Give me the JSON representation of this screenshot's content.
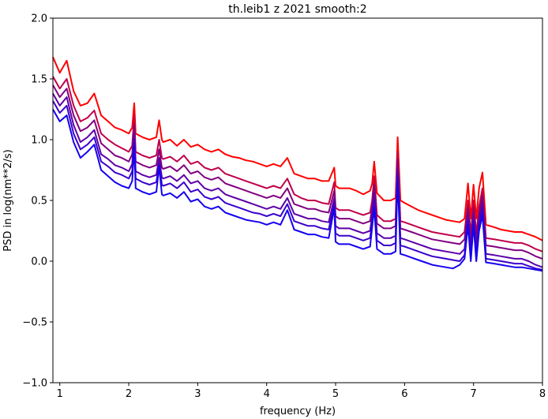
{
  "chart_data": {
    "type": "line",
    "title": "th.leib1 z 2021 smooth:2",
    "xlabel": "frequency (Hz)",
    "ylabel": "PSD in log(nm**2/s)",
    "xlim": [
      0.9,
      8.0
    ],
    "ylim": [
      -1.0,
      2.0
    ],
    "xticks": [
      1,
      2,
      3,
      4,
      5,
      6,
      7,
      8
    ],
    "xtick_labels": [
      "1",
      "2",
      "3",
      "4",
      "5",
      "6",
      "7",
      "8"
    ],
    "yticks": [
      -1.0,
      -0.5,
      0.0,
      0.5,
      1.0,
      1.5,
      2.0
    ],
    "ytick_labels": [
      "−1.0",
      "−0.5",
      "0.0",
      "0.5",
      "1.0",
      "1.5",
      "2.0"
    ],
    "grid": false,
    "legend": "none",
    "series": [
      {
        "color": "#ff0000",
        "x": [
          0.9,
          1.0,
          1.1,
          1.2,
          1.3,
          1.4,
          1.5,
          1.6,
          1.7,
          1.8,
          1.9,
          2.0,
          2.05,
          2.08,
          2.1,
          2.2,
          2.3,
          2.4,
          2.44,
          2.48,
          2.5,
          2.6,
          2.7,
          2.8,
          2.9,
          3.0,
          3.1,
          3.2,
          3.3,
          3.4,
          3.5,
          3.6,
          3.7,
          3.8,
          3.9,
          4.0,
          4.1,
          4.2,
          4.3,
          4.4,
          4.5,
          4.6,
          4.7,
          4.8,
          4.9,
          4.98,
          5.0,
          5.05,
          5.1,
          5.2,
          5.3,
          5.4,
          5.5,
          5.53,
          5.56,
          5.6,
          5.7,
          5.8,
          5.87,
          5.9,
          5.94,
          6.0,
          6.1,
          6.2,
          6.3,
          6.4,
          6.5,
          6.6,
          6.7,
          6.8,
          6.87,
          6.92,
          6.96,
          7.0,
          7.04,
          7.08,
          7.13,
          7.18,
          7.3,
          7.4,
          7.5,
          7.6,
          7.7,
          7.8,
          7.9,
          8.0
        ],
        "y": [
          1.68,
          1.55,
          1.65,
          1.4,
          1.28,
          1.3,
          1.38,
          1.2,
          1.15,
          1.1,
          1.08,
          1.05,
          1.1,
          1.3,
          1.05,
          1.02,
          1.0,
          1.02,
          1.16,
          1.0,
          0.98,
          1.0,
          0.95,
          1.0,
          0.94,
          0.96,
          0.92,
          0.9,
          0.92,
          0.88,
          0.86,
          0.85,
          0.83,
          0.82,
          0.8,
          0.78,
          0.8,
          0.78,
          0.85,
          0.72,
          0.7,
          0.68,
          0.68,
          0.66,
          0.66,
          0.77,
          0.62,
          0.6,
          0.6,
          0.6,
          0.58,
          0.55,
          0.58,
          0.64,
          0.82,
          0.56,
          0.5,
          0.5,
          0.52,
          1.02,
          0.5,
          0.48,
          0.45,
          0.42,
          0.4,
          0.38,
          0.36,
          0.34,
          0.33,
          0.32,
          0.35,
          0.64,
          0.35,
          0.63,
          0.35,
          0.6,
          0.73,
          0.3,
          0.28,
          0.26,
          0.25,
          0.24,
          0.24,
          0.22,
          0.2,
          0.17
        ]
      },
      {
        "color": "#c0004a",
        "x": [
          0.9,
          1.0,
          1.1,
          1.2,
          1.3,
          1.4,
          1.5,
          1.6,
          1.7,
          1.8,
          1.9,
          2.0,
          2.05,
          2.08,
          2.1,
          2.2,
          2.3,
          2.4,
          2.44,
          2.48,
          2.5,
          2.6,
          2.7,
          2.8,
          2.9,
          3.0,
          3.1,
          3.2,
          3.3,
          3.4,
          3.5,
          3.6,
          3.7,
          3.8,
          3.9,
          4.0,
          4.1,
          4.2,
          4.3,
          4.4,
          4.5,
          4.6,
          4.7,
          4.8,
          4.9,
          4.98,
          5.0,
          5.05,
          5.1,
          5.2,
          5.3,
          5.4,
          5.5,
          5.53,
          5.56,
          5.6,
          5.7,
          5.8,
          5.87,
          5.9,
          5.94,
          6.0,
          6.1,
          6.2,
          6.3,
          6.4,
          6.5,
          6.6,
          6.7,
          6.8,
          6.87,
          6.92,
          6.96,
          7.0,
          7.04,
          7.08,
          7.13,
          7.18,
          7.3,
          7.4,
          7.5,
          7.6,
          7.7,
          7.8,
          7.9,
          8.0
        ],
        "y": [
          1.52,
          1.42,
          1.5,
          1.28,
          1.15,
          1.18,
          1.24,
          1.05,
          1.0,
          0.96,
          0.93,
          0.9,
          0.95,
          1.2,
          0.9,
          0.87,
          0.85,
          0.87,
          1.0,
          0.85,
          0.84,
          0.86,
          0.82,
          0.87,
          0.8,
          0.82,
          0.77,
          0.75,
          0.77,
          0.72,
          0.7,
          0.68,
          0.66,
          0.64,
          0.62,
          0.6,
          0.62,
          0.6,
          0.68,
          0.55,
          0.52,
          0.5,
          0.5,
          0.48,
          0.47,
          0.65,
          0.44,
          0.42,
          0.42,
          0.42,
          0.4,
          0.38,
          0.4,
          0.5,
          0.7,
          0.38,
          0.33,
          0.33,
          0.35,
          0.9,
          0.33,
          0.32,
          0.3,
          0.28,
          0.26,
          0.24,
          0.23,
          0.22,
          0.21,
          0.2,
          0.24,
          0.5,
          0.22,
          0.5,
          0.22,
          0.45,
          0.6,
          0.19,
          0.18,
          0.17,
          0.16,
          0.15,
          0.15,
          0.13,
          0.1,
          0.08
        ]
      },
      {
        "color": "#800080",
        "x": [
          0.9,
          1.0,
          1.1,
          1.2,
          1.3,
          1.4,
          1.5,
          1.6,
          1.7,
          1.8,
          1.9,
          2.0,
          2.05,
          2.08,
          2.1,
          2.2,
          2.3,
          2.4,
          2.44,
          2.48,
          2.5,
          2.6,
          2.7,
          2.8,
          2.9,
          3.0,
          3.1,
          3.2,
          3.3,
          3.4,
          3.5,
          3.6,
          3.7,
          3.8,
          3.9,
          4.0,
          4.1,
          4.2,
          4.3,
          4.4,
          4.5,
          4.6,
          4.7,
          4.8,
          4.9,
          4.98,
          5.0,
          5.05,
          5.1,
          5.2,
          5.3,
          5.4,
          5.5,
          5.53,
          5.56,
          5.6,
          5.7,
          5.8,
          5.87,
          5.9,
          5.94,
          6.0,
          6.1,
          6.2,
          6.3,
          6.4,
          6.5,
          6.6,
          6.7,
          6.8,
          6.87,
          6.92,
          6.96,
          7.0,
          7.04,
          7.08,
          7.13,
          7.18,
          7.3,
          7.4,
          7.5,
          7.6,
          7.7,
          7.8,
          7.9,
          8.0
        ],
        "y": [
          1.45,
          1.35,
          1.42,
          1.2,
          1.07,
          1.1,
          1.16,
          0.97,
          0.92,
          0.87,
          0.85,
          0.82,
          0.88,
          1.12,
          0.82,
          0.79,
          0.77,
          0.79,
          0.92,
          0.77,
          0.76,
          0.78,
          0.74,
          0.79,
          0.72,
          0.74,
          0.69,
          0.67,
          0.69,
          0.64,
          0.62,
          0.6,
          0.58,
          0.56,
          0.54,
          0.52,
          0.54,
          0.52,
          0.6,
          0.47,
          0.45,
          0.43,
          0.43,
          0.41,
          0.4,
          0.58,
          0.37,
          0.35,
          0.35,
          0.35,
          0.33,
          0.31,
          0.33,
          0.44,
          0.63,
          0.31,
          0.27,
          0.27,
          0.29,
          0.84,
          0.27,
          0.26,
          0.24,
          0.22,
          0.2,
          0.18,
          0.17,
          0.16,
          0.15,
          0.14,
          0.18,
          0.44,
          0.16,
          0.44,
          0.16,
          0.39,
          0.54,
          0.13,
          0.12,
          0.11,
          0.1,
          0.09,
          0.09,
          0.07,
          0.04,
          0.02
        ]
      },
      {
        "color": "#5c00a8",
        "x": [
          0.9,
          1.0,
          1.1,
          1.2,
          1.3,
          1.4,
          1.5,
          1.6,
          1.7,
          1.8,
          1.9,
          2.0,
          2.05,
          2.08,
          2.1,
          2.2,
          2.3,
          2.4,
          2.44,
          2.48,
          2.5,
          2.6,
          2.7,
          2.8,
          2.9,
          3.0,
          3.1,
          3.2,
          3.3,
          3.4,
          3.5,
          3.6,
          3.7,
          3.8,
          3.9,
          4.0,
          4.1,
          4.2,
          4.3,
          4.4,
          4.5,
          4.6,
          4.7,
          4.8,
          4.9,
          4.98,
          5.0,
          5.05,
          5.1,
          5.2,
          5.3,
          5.4,
          5.5,
          5.53,
          5.56,
          5.6,
          5.7,
          5.8,
          5.87,
          5.9,
          5.94,
          6.0,
          6.1,
          6.2,
          6.3,
          6.4,
          6.5,
          6.6,
          6.7,
          6.8,
          6.87,
          6.92,
          6.96,
          7.0,
          7.04,
          7.08,
          7.13,
          7.18,
          7.3,
          7.4,
          7.5,
          7.6,
          7.7,
          7.8,
          7.9,
          8.0
        ],
        "y": [
          1.38,
          1.28,
          1.35,
          1.12,
          0.98,
          1.02,
          1.08,
          0.88,
          0.84,
          0.79,
          0.77,
          0.74,
          0.8,
          1.05,
          0.74,
          0.71,
          0.69,
          0.71,
          0.85,
          0.69,
          0.68,
          0.7,
          0.66,
          0.71,
          0.64,
          0.66,
          0.6,
          0.58,
          0.6,
          0.55,
          0.53,
          0.51,
          0.49,
          0.47,
          0.45,
          0.43,
          0.45,
          0.43,
          0.52,
          0.39,
          0.37,
          0.35,
          0.35,
          0.33,
          0.32,
          0.52,
          0.29,
          0.27,
          0.27,
          0.27,
          0.25,
          0.23,
          0.25,
          0.38,
          0.56,
          0.23,
          0.19,
          0.19,
          0.21,
          0.78,
          0.19,
          0.18,
          0.16,
          0.14,
          0.12,
          0.1,
          0.09,
          0.08,
          0.07,
          0.06,
          0.1,
          0.38,
          0.08,
          0.38,
          0.08,
          0.33,
          0.48,
          0.06,
          0.05,
          0.04,
          0.03,
          0.02,
          0.02,
          0.0,
          -0.03,
          -0.05
        ]
      },
      {
        "color": "#3a00cc",
        "x": [
          0.9,
          1.0,
          1.1,
          1.2,
          1.3,
          1.4,
          1.5,
          1.6,
          1.7,
          1.8,
          1.9,
          2.0,
          2.05,
          2.08,
          2.1,
          2.2,
          2.3,
          2.4,
          2.44,
          2.48,
          2.5,
          2.6,
          2.7,
          2.8,
          2.9,
          3.0,
          3.1,
          3.2,
          3.3,
          3.4,
          3.5,
          3.6,
          3.7,
          3.8,
          3.9,
          4.0,
          4.1,
          4.2,
          4.3,
          4.4,
          4.5,
          4.6,
          4.7,
          4.8,
          4.9,
          4.98,
          5.0,
          5.05,
          5.1,
          5.2,
          5.3,
          5.4,
          5.5,
          5.53,
          5.56,
          5.6,
          5.7,
          5.8,
          5.87,
          5.9,
          5.94,
          6.0,
          6.1,
          6.2,
          6.3,
          6.4,
          6.5,
          6.6,
          6.7,
          6.8,
          6.87,
          6.92,
          6.96,
          7.0,
          7.04,
          7.08,
          7.13,
          7.18,
          7.3,
          7.4,
          7.5,
          7.6,
          7.7,
          7.8,
          7.9,
          8.0
        ],
        "y": [
          1.32,
          1.22,
          1.28,
          1.05,
          0.92,
          0.96,
          1.02,
          0.82,
          0.78,
          0.73,
          0.71,
          0.68,
          0.74,
          1.0,
          0.68,
          0.65,
          0.63,
          0.65,
          0.8,
          0.63,
          0.62,
          0.64,
          0.6,
          0.65,
          0.57,
          0.59,
          0.53,
          0.51,
          0.53,
          0.48,
          0.46,
          0.44,
          0.42,
          0.4,
          0.39,
          0.37,
          0.39,
          0.37,
          0.47,
          0.33,
          0.31,
          0.29,
          0.29,
          0.27,
          0.26,
          0.48,
          0.23,
          0.21,
          0.21,
          0.21,
          0.19,
          0.17,
          0.19,
          0.33,
          0.5,
          0.17,
          0.13,
          0.13,
          0.15,
          0.74,
          0.13,
          0.12,
          0.1,
          0.08,
          0.06,
          0.04,
          0.03,
          0.02,
          0.01,
          0.0,
          0.05,
          0.34,
          0.03,
          0.34,
          0.03,
          0.29,
          0.43,
          0.02,
          0.01,
          0.0,
          -0.01,
          -0.02,
          -0.02,
          -0.04,
          -0.06,
          -0.07
        ]
      },
      {
        "color": "#1400f0",
        "x": [
          0.9,
          1.0,
          1.1,
          1.2,
          1.3,
          1.4,
          1.5,
          1.6,
          1.7,
          1.8,
          1.9,
          2.0,
          2.05,
          2.08,
          2.1,
          2.2,
          2.3,
          2.4,
          2.44,
          2.48,
          2.5,
          2.6,
          2.7,
          2.8,
          2.9,
          3.0,
          3.1,
          3.2,
          3.3,
          3.4,
          3.5,
          3.6,
          3.7,
          3.8,
          3.9,
          4.0,
          4.1,
          4.2,
          4.3,
          4.4,
          4.5,
          4.6,
          4.7,
          4.8,
          4.9,
          4.98,
          5.0,
          5.05,
          5.1,
          5.2,
          5.3,
          5.4,
          5.5,
          5.53,
          5.56,
          5.6,
          5.7,
          5.8,
          5.87,
          5.9,
          5.94,
          6.0,
          6.1,
          6.2,
          6.3,
          6.4,
          6.5,
          6.6,
          6.7,
          6.8,
          6.87,
          6.92,
          6.96,
          7.0,
          7.04,
          7.08,
          7.13,
          7.18,
          7.3,
          7.4,
          7.5,
          7.6,
          7.7,
          7.8,
          7.9,
          8.0
        ],
        "y": [
          1.25,
          1.15,
          1.2,
          0.98,
          0.85,
          0.9,
          0.96,
          0.75,
          0.7,
          0.65,
          0.62,
          0.6,
          0.66,
          0.95,
          0.6,
          0.57,
          0.55,
          0.57,
          0.78,
          0.55,
          0.54,
          0.56,
          0.52,
          0.57,
          0.49,
          0.51,
          0.45,
          0.43,
          0.45,
          0.4,
          0.38,
          0.36,
          0.34,
          0.33,
          0.32,
          0.3,
          0.32,
          0.3,
          0.42,
          0.26,
          0.24,
          0.22,
          0.22,
          0.2,
          0.19,
          0.44,
          0.16,
          0.14,
          0.14,
          0.14,
          0.12,
          0.1,
          0.12,
          0.28,
          0.44,
          0.1,
          0.06,
          0.06,
          0.08,
          0.7,
          0.06,
          0.05,
          0.03,
          0.01,
          -0.01,
          -0.03,
          -0.04,
          -0.05,
          -0.06,
          -0.03,
          0.02,
          0.3,
          0.0,
          0.3,
          0.0,
          0.25,
          0.38,
          -0.01,
          -0.02,
          -0.03,
          -0.04,
          -0.05,
          -0.05,
          -0.06,
          -0.07,
          -0.08
        ]
      }
    ]
  }
}
